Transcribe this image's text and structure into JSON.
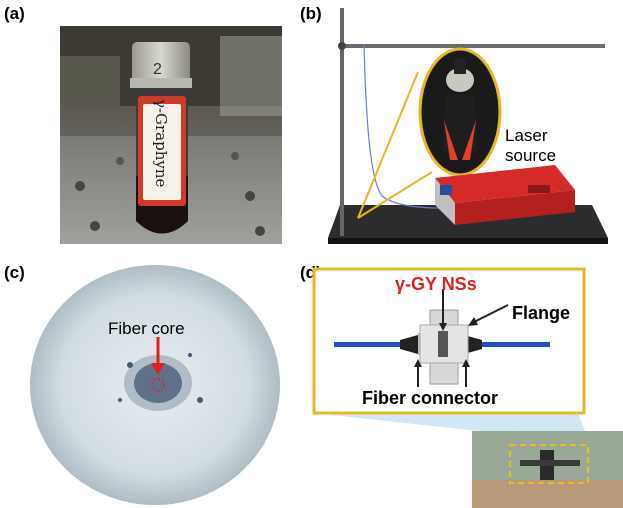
{
  "panels": {
    "a": {
      "label": "(a)",
      "tube_handwriting": "γ-Graphyne",
      "tube_number": "2"
    },
    "b": {
      "label": "(b)",
      "laser_label_line1": "Laser",
      "laser_label_line2": "source"
    },
    "c": {
      "label": "(c)",
      "fiber_core_label": "Fiber core"
    },
    "d": {
      "label": "(d)",
      "nss_label": "γ-GY NSs",
      "flange_label": "Flange",
      "connector_label": "Fiber connector"
    }
  },
  "colors": {
    "accent_yellow": "#e8b820",
    "annotation_red": "#e02020",
    "fiber_blue": "#1f4fd0"
  }
}
